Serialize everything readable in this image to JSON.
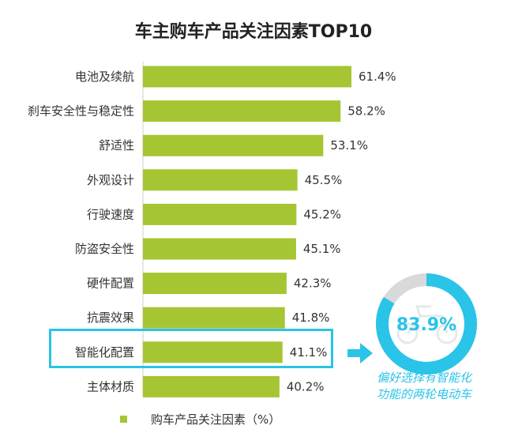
{
  "chart_data": {
    "type": "bar",
    "orientation": "horizontal",
    "title": "车主购车产品关注因素TOP10",
    "categories": [
      "电池及续航",
      "刹车安全性与稳定性",
      "舒适性",
      "外观设计",
      "行驶速度",
      "防盗安全性",
      "硬件配置",
      "抗震效果",
      "智能化配置",
      "主体材质"
    ],
    "values": [
      61.4,
      58.2,
      53.1,
      45.5,
      45.2,
      45.1,
      42.3,
      41.8,
      41.1,
      40.2
    ],
    "value_labels": [
      "61.4%",
      "58.2%",
      "53.1%",
      "45.5%",
      "45.2%",
      "45.1%",
      "42.3%",
      "41.8%",
      "41.1%",
      "40.2%"
    ],
    "xlim": [
      0,
      70
    ],
    "grid": false,
    "legend": {
      "position": "bottom",
      "entries": [
        "购车产品关注因素（%）"
      ]
    },
    "highlighted_category": "智能化配置",
    "annotation": {
      "value": 83.9,
      "value_label": "83.9%",
      "caption_lines": [
        "偏好选择有智能化",
        "功能的两轮电动车"
      ]
    }
  },
  "colors": {
    "bar": "#a5c532",
    "accent": "#29c4e8",
    "donut_track": "#d9d9d9",
    "title": "#222222"
  },
  "icons": {
    "callout_arrow": "arrow-right-icon",
    "background_vehicle": "scooter-icon"
  }
}
